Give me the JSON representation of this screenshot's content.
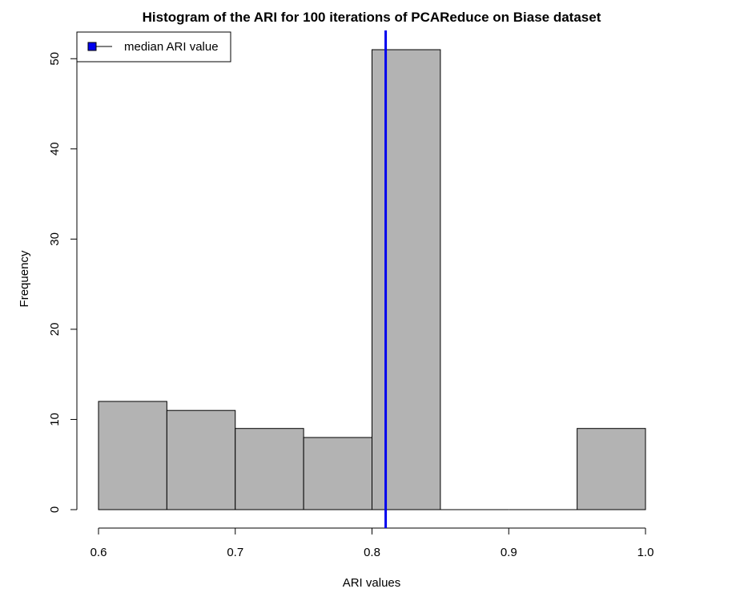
{
  "chart_data": {
    "type": "bar",
    "title": "Histogram of the ARI for 100 iterations of PCAReduce on Biase dataset",
    "xlabel": "ARI values",
    "ylabel": "Frequency",
    "bins": [
      {
        "start": 0.6,
        "end": 0.65,
        "count": 12
      },
      {
        "start": 0.65,
        "end": 0.7,
        "count": 11
      },
      {
        "start": 0.7,
        "end": 0.75,
        "count": 9
      },
      {
        "start": 0.75,
        "end": 0.8,
        "count": 8
      },
      {
        "start": 0.8,
        "end": 0.85,
        "count": 51
      },
      {
        "start": 0.85,
        "end": 0.9,
        "count": 0
      },
      {
        "start": 0.9,
        "end": 0.95,
        "count": 0
      },
      {
        "start": 0.95,
        "end": 1.0,
        "count": 9
      }
    ],
    "xlim": [
      0.6,
      1.0
    ],
    "ylim": [
      0,
      51
    ],
    "x_ticks": [
      "0.6",
      "0.7",
      "0.8",
      "0.9",
      "1.0"
    ],
    "x_tick_values": [
      0.6,
      0.7,
      0.8,
      0.9,
      1.0
    ],
    "y_ticks": [
      "0",
      "10",
      "20",
      "30",
      "40",
      "50"
    ],
    "y_tick_values": [
      0,
      10,
      20,
      30,
      40,
      50
    ],
    "median_line": {
      "value": 0.81,
      "color": "#0000ee"
    },
    "legend": {
      "position": "top-left",
      "entries": [
        {
          "label": "median ARI value",
          "color": "#0000ee"
        }
      ]
    },
    "bar_fill": "#b3b3b3",
    "bar_stroke": "#000000",
    "grid": false
  }
}
